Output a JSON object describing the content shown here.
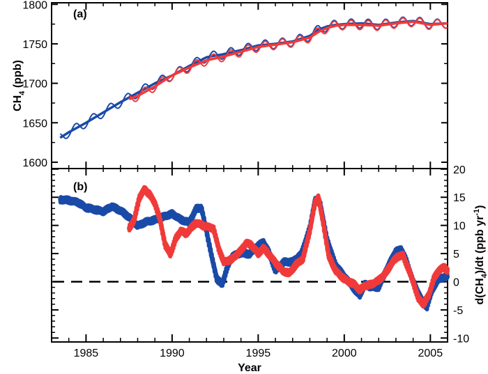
{
  "chart_data": [
    {
      "type": "line",
      "panel_label": "(a)",
      "ylabel": "CH4 (ppb)",
      "ylabel_main": "CH",
      "ylabel_sub": "4",
      "ylabel_rest": " (ppb)",
      "xlim": [
        1983.0,
        2006.0
      ],
      "ylim": [
        1592,
        1802
      ],
      "yticks": [
        1600,
        1650,
        1700,
        1750,
        1800
      ],
      "ytick_labels": [
        "1600",
        "1650",
        "1700",
        "1750",
        "1800"
      ],
      "series": [
        {
          "name": "blue smoothed",
          "color": "#1a4aa8",
          "x": [
            1983.5,
            1984.0,
            1985.0,
            1986.0,
            1987.0,
            1988.0,
            1989.0,
            1990.0,
            1991.0,
            1992.0,
            1993.0,
            1994.0,
            1995.0,
            1996.0,
            1997.0,
            1998.0,
            1998.5,
            1999.0,
            1999.5,
            2000.0,
            2001.0,
            2002.0,
            2003.0,
            2004.0,
            2005.0,
            2006.0
          ],
          "y": [
            1631,
            1638,
            1650,
            1663,
            1676,
            1688,
            1700,
            1710,
            1722,
            1733,
            1737,
            1742,
            1748,
            1750,
            1753,
            1760,
            1768,
            1772,
            1774,
            1775,
            1776,
            1774,
            1777,
            1779,
            1775,
            1776
          ]
        },
        {
          "name": "red smoothed",
          "color": "#f03a3a",
          "x": [
            1987.5,
            1988.0,
            1989.0,
            1990.0,
            1991.0,
            1992.0,
            1993.0,
            1994.0,
            1995.0,
            1996.0,
            1997.0,
            1998.0,
            1998.5,
            1999.0,
            1999.5,
            2000.0,
            2001.0,
            2002.0,
            2003.0,
            2004.0,
            2005.0,
            2006.0
          ],
          "y": [
            1680,
            1684,
            1696,
            1710,
            1720,
            1729,
            1734,
            1740,
            1746,
            1749,
            1752,
            1758,
            1765,
            1770,
            1773,
            1774,
            1774,
            1773,
            1776,
            1778,
            1774,
            1776
          ]
        }
      ],
      "seasonal_amplitude_ppb": 6
    },
    {
      "type": "line",
      "panel_label": "(b)",
      "xlabel": "Year",
      "ylabel": "d(CH4)/dt (ppb yr-1)",
      "ylabel_main": "d(CH",
      "ylabel_sub": "4",
      "ylabel_mid": ")/dt (ppb yr",
      "ylabel_sup": "-1",
      "ylabel_end": ")",
      "xlim": [
        1983.0,
        2006.0
      ],
      "ylim": [
        -10.7,
        20.1
      ],
      "xticks": [
        1985,
        1990,
        1995,
        2000,
        2005
      ],
      "xtick_labels": [
        "1985",
        "1990",
        "1995",
        "2000",
        "2005"
      ],
      "yticks": [
        -10,
        -5,
        0,
        5,
        10,
        15,
        20
      ],
      "ytick_labels": [
        "-10",
        "-5",
        "0",
        "5",
        "10",
        "15",
        "20"
      ],
      "reference_line": {
        "y": 0,
        "style": "dashed"
      },
      "series": [
        {
          "name": "blue growth rate",
          "color": "#1a4aa8",
          "x": [
            1983.5,
            1984.0,
            1984.5,
            1985.0,
            1985.5,
            1986.0,
            1986.5,
            1987.0,
            1987.5,
            1988.0,
            1988.5,
            1989.0,
            1989.5,
            1990.0,
            1990.5,
            1991.0,
            1991.4,
            1991.7,
            1992.0,
            1992.3,
            1992.6,
            1992.9,
            1993.2,
            1993.5,
            1994.0,
            1994.5,
            1995.0,
            1995.3,
            1995.6,
            1996.0,
            1996.5,
            1997.0,
            1997.5,
            1998.0,
            1998.3,
            1998.6,
            1999.0,
            1999.5,
            2000.0,
            2000.5,
            2000.9,
            2001.2,
            2001.5,
            2002.0,
            2002.5,
            2003.0,
            2003.3,
            2003.6,
            2004.0,
            2004.3,
            2004.6,
            2004.8,
            2005.1,
            2005.5,
            2006.0
          ],
          "y": [
            14.6,
            14.5,
            14.2,
            13.2,
            12.8,
            12.4,
            13.3,
            12.6,
            11.5,
            10.0,
            10.7,
            11.0,
            11.5,
            12.0,
            11.0,
            10.5,
            13.0,
            13.2,
            9.0,
            4.5,
            0.5,
            -0.5,
            2.5,
            4.5,
            5.0,
            4.9,
            6.5,
            7.0,
            5.5,
            2.0,
            3.5,
            3.5,
            4.8,
            9.5,
            14.5,
            14.0,
            7.5,
            3.0,
            1.0,
            -1.0,
            -2.5,
            -0.5,
            -1.0,
            -1.0,
            2.5,
            5.5,
            5.8,
            3.8,
            0.0,
            -2.0,
            -4.0,
            -4.5,
            -1.5,
            0.5,
            1.0
          ]
        },
        {
          "name": "red growth rate",
          "color": "#f03a3a",
          "x": [
            1987.5,
            1987.8,
            1988.1,
            1988.4,
            1988.7,
            1989.0,
            1989.3,
            1989.6,
            1989.9,
            1990.2,
            1990.5,
            1990.8,
            1991.1,
            1991.4,
            1991.8,
            1992.1,
            1992.4,
            1992.7,
            1993.0,
            1993.5,
            1994.0,
            1994.3,
            1994.6,
            1995.0,
            1995.3,
            1995.6,
            1996.0,
            1996.4,
            1996.8,
            1997.2,
            1997.6,
            1998.0,
            1998.3,
            1998.5,
            1998.8,
            1999.1,
            1999.5,
            2000.0,
            2000.3,
            2000.6,
            2000.9,
            2001.2,
            2001.6,
            2002.0,
            2002.4,
            2002.8,
            2003.1,
            2003.4,
            2003.7,
            2004.0,
            2004.3,
            2004.6,
            2004.9,
            2005.2,
            2005.5,
            2005.8,
            2006.0
          ],
          "y": [
            9.5,
            11.0,
            15.0,
            16.5,
            15.5,
            14.0,
            11.0,
            6.5,
            4.8,
            7.5,
            9.0,
            8.5,
            9.5,
            10.5,
            10.0,
            9.8,
            9.5,
            6.0,
            3.5,
            4.0,
            5.5,
            6.8,
            6.5,
            5.0,
            6.0,
            5.0,
            3.5,
            2.0,
            1.5,
            3.0,
            4.0,
            9.0,
            14.0,
            15.0,
            10.0,
            4.5,
            2.0,
            0.5,
            0.0,
            -0.5,
            -1.5,
            -0.8,
            -0.5,
            0.2,
            1.5,
            3.5,
            4.5,
            4.8,
            2.5,
            0.0,
            -3.0,
            -4.0,
            -2.5,
            0.5,
            2.0,
            2.5,
            2.0
          ]
        }
      ]
    }
  ]
}
